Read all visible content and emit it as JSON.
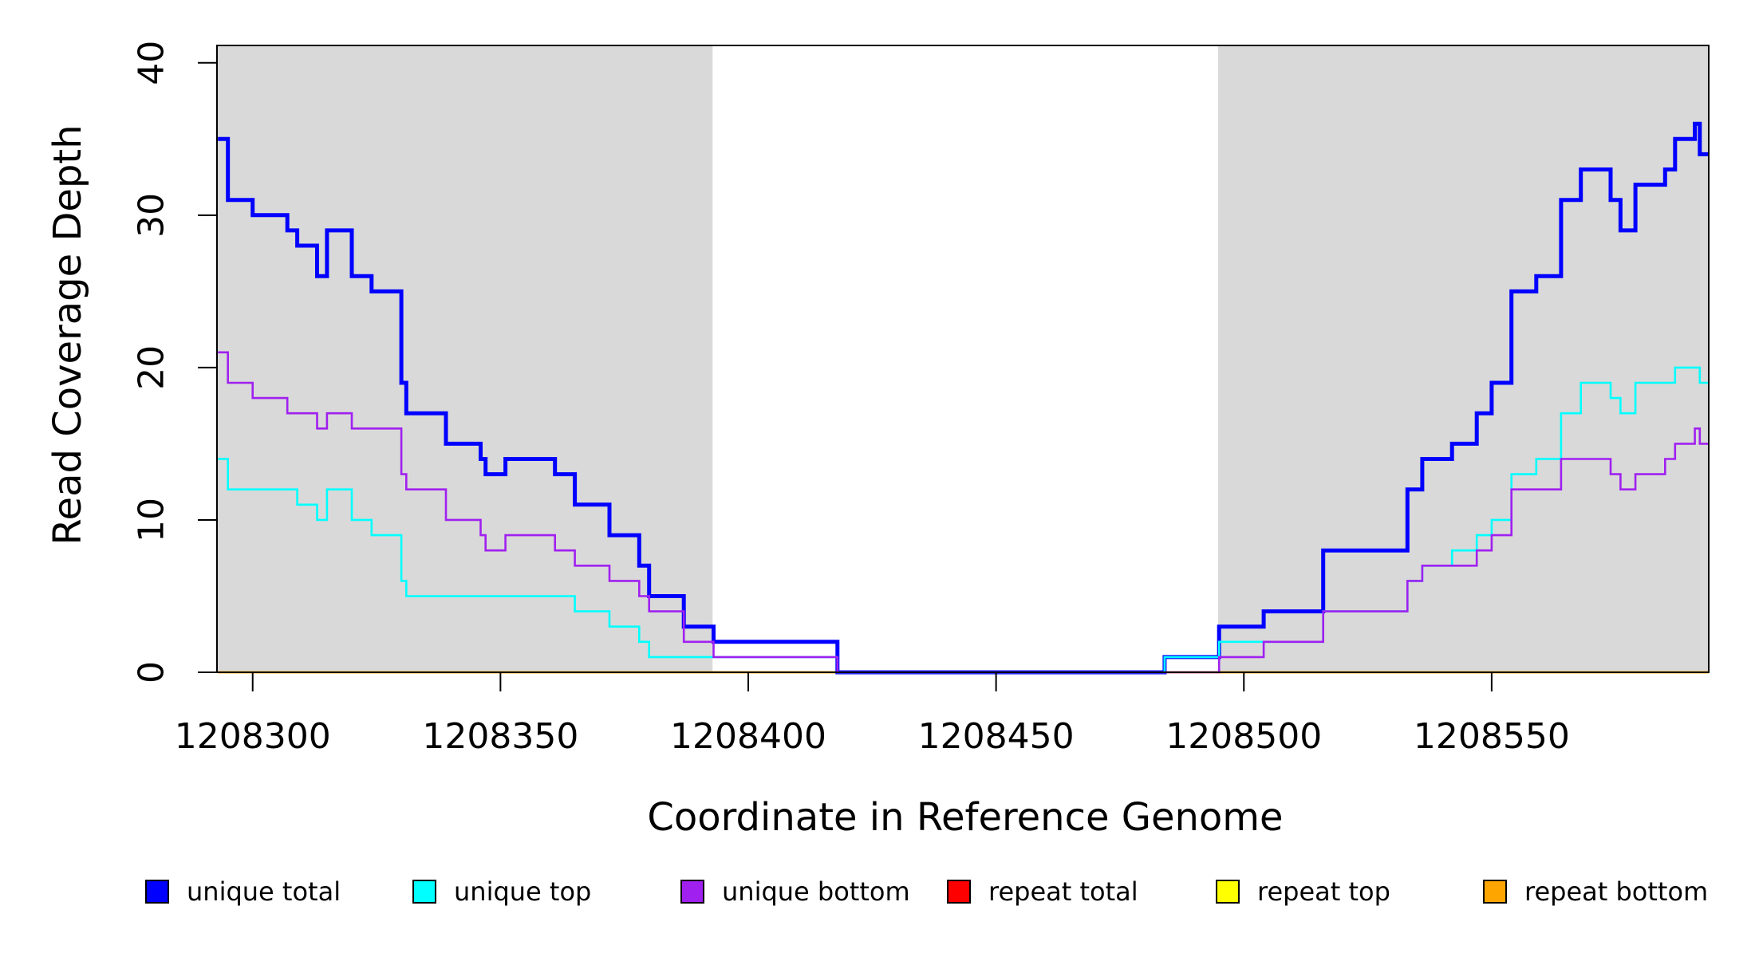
{
  "chart_data": {
    "type": "line",
    "subtype": "step-coverage-plot",
    "title": "",
    "xlabel": "Coordinate in Reference Genome",
    "ylabel": "Read Coverage Depth",
    "xlim": [
      1208292.8,
      1208593.8
    ],
    "ylim": [
      0,
      41.14
    ],
    "x_ticks": [
      1208300,
      1208350,
      1208400,
      1208450,
      1208500,
      1208550
    ],
    "y_ticks": [
      0,
      10,
      20,
      30,
      40
    ],
    "grid": false,
    "background_color": "#FFFFFF",
    "box_color": "#000000",
    "shade_color": "#D9D9D9",
    "shaded_regions": [
      {
        "from": 1208292.8,
        "to": 1208392.8
      },
      {
        "from": 1208494.8,
        "to": 1208593.8
      }
    ],
    "legend_position": "bottom",
    "legend": [
      {
        "label": "unique total",
        "color": "#0000FF"
      },
      {
        "label": "unique top",
        "color": "#00FFFF"
      },
      {
        "label": "unique bottom",
        "color": "#A020F0"
      },
      {
        "label": "repeat total",
        "color": "#FF0000"
      },
      {
        "label": "repeat top",
        "color": "#FFFF00"
      },
      {
        "label": "repeat bottom",
        "color": "#FFA500"
      }
    ],
    "draw_order": [
      "repeat total",
      "repeat top",
      "repeat bottom",
      "unique total",
      "unique top",
      "unique bottom"
    ],
    "series": [
      {
        "name": "unique total",
        "color": "#0000FF",
        "width": 5,
        "points": [
          [
            1208293,
            35
          ],
          [
            1208295,
            31
          ],
          [
            1208300,
            30
          ],
          [
            1208307,
            29
          ],
          [
            1208309,
            28
          ],
          [
            1208313,
            26
          ],
          [
            1208315,
            29
          ],
          [
            1208320,
            26
          ],
          [
            1208324,
            25
          ],
          [
            1208330,
            19
          ],
          [
            1208331,
            17
          ],
          [
            1208339,
            15
          ],
          [
            1208346,
            14
          ],
          [
            1208347,
            13
          ],
          [
            1208351,
            14
          ],
          [
            1208361,
            13
          ],
          [
            1208365,
            11
          ],
          [
            1208372,
            9
          ],
          [
            1208378,
            7
          ],
          [
            1208380,
            5
          ],
          [
            1208387,
            3
          ],
          [
            1208393,
            2
          ],
          [
            1208418,
            0
          ],
          [
            1208484,
            1
          ],
          [
            1208495,
            3
          ],
          [
            1208504,
            4
          ],
          [
            1208516,
            8
          ],
          [
            1208533,
            12
          ],
          [
            1208536,
            14
          ],
          [
            1208542,
            15
          ],
          [
            1208547,
            17
          ],
          [
            1208550,
            19
          ],
          [
            1208554,
            25
          ],
          [
            1208559,
            26
          ],
          [
            1208564,
            31
          ],
          [
            1208568,
            33
          ],
          [
            1208574,
            31
          ],
          [
            1208576,
            29
          ],
          [
            1208579,
            32
          ],
          [
            1208585,
            33
          ],
          [
            1208587,
            35
          ],
          [
            1208591,
            36
          ],
          [
            1208592,
            34
          ]
        ]
      },
      {
        "name": "unique top",
        "color": "#00FFFF",
        "width": 2.6,
        "points": [
          [
            1208293,
            14
          ],
          [
            1208295,
            12
          ],
          [
            1208309,
            11
          ],
          [
            1208313,
            10
          ],
          [
            1208315,
            12
          ],
          [
            1208320,
            10
          ],
          [
            1208324,
            9
          ],
          [
            1208330,
            6
          ],
          [
            1208331,
            5
          ],
          [
            1208365,
            4
          ],
          [
            1208372,
            3
          ],
          [
            1208378,
            2
          ],
          [
            1208380,
            1
          ],
          [
            1208418,
            0
          ],
          [
            1208484,
            1
          ],
          [
            1208495,
            2
          ],
          [
            1208516,
            4
          ],
          [
            1208533,
            6
          ],
          [
            1208536,
            7
          ],
          [
            1208542,
            8
          ],
          [
            1208547,
            9
          ],
          [
            1208550,
            10
          ],
          [
            1208554,
            13
          ],
          [
            1208559,
            14
          ],
          [
            1208564,
            17
          ],
          [
            1208568,
            19
          ],
          [
            1208574,
            18
          ],
          [
            1208576,
            17
          ],
          [
            1208579,
            19
          ],
          [
            1208587,
            20
          ],
          [
            1208592,
            19
          ]
        ]
      },
      {
        "name": "unique bottom",
        "color": "#A020F0",
        "width": 2.6,
        "points": [
          [
            1208293,
            21
          ],
          [
            1208295,
            19
          ],
          [
            1208300,
            18
          ],
          [
            1208307,
            17
          ],
          [
            1208313,
            16
          ],
          [
            1208315,
            17
          ],
          [
            1208320,
            16
          ],
          [
            1208330,
            13
          ],
          [
            1208331,
            12
          ],
          [
            1208339,
            10
          ],
          [
            1208346,
            9
          ],
          [
            1208347,
            8
          ],
          [
            1208351,
            9
          ],
          [
            1208361,
            8
          ],
          [
            1208365,
            7
          ],
          [
            1208372,
            6
          ],
          [
            1208378,
            5
          ],
          [
            1208380,
            4
          ],
          [
            1208387,
            2
          ],
          [
            1208393,
            1
          ],
          [
            1208418,
            0
          ],
          [
            1208495,
            1
          ],
          [
            1208504,
            2
          ],
          [
            1208516,
            4
          ],
          [
            1208533,
            6
          ],
          [
            1208536,
            7
          ],
          [
            1208547,
            8
          ],
          [
            1208550,
            9
          ],
          [
            1208554,
            12
          ],
          [
            1208564,
            14
          ],
          [
            1208574,
            13
          ],
          [
            1208576,
            12
          ],
          [
            1208579,
            13
          ],
          [
            1208585,
            14
          ],
          [
            1208587,
            15
          ],
          [
            1208591,
            16
          ],
          [
            1208592,
            15
          ]
        ]
      },
      {
        "name": "repeat total",
        "color": "#FF0000",
        "width": 2.6,
        "points": [
          [
            1208293,
            0
          ]
        ]
      },
      {
        "name": "repeat top",
        "color": "#FFFF00",
        "width": 2.6,
        "points": [
          [
            1208293,
            0
          ]
        ]
      },
      {
        "name": "repeat bottom",
        "color": "#FFA500",
        "width": 2.6,
        "points": [
          [
            1208293,
            0
          ]
        ]
      }
    ]
  }
}
